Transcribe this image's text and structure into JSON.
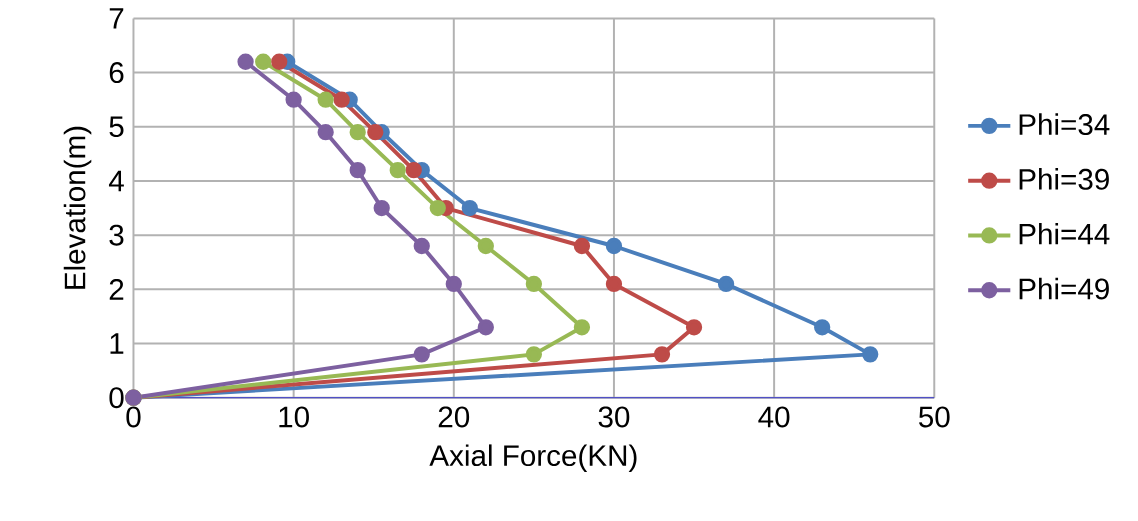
{
  "chart_data": {
    "type": "line",
    "xlabel": "Axial Force(KN)",
    "ylabel": "Elevation(m)",
    "xlim": [
      0,
      50
    ],
    "xticks": [
      0,
      10,
      20,
      30,
      40,
      50
    ],
    "ylim": [
      0,
      7
    ],
    "yticks": [
      0,
      1,
      2,
      3,
      4,
      5,
      6,
      7
    ],
    "grid": true,
    "legend": "right",
    "marker": "circle",
    "line_style": "solid",
    "series": [
      {
        "name": "Phi=34",
        "color": "#4a7ebb",
        "x": [
          9.6,
          13.5,
          15.5,
          18,
          21,
          30,
          37,
          43,
          46,
          0
        ],
        "values": [
          6.2,
          5.5,
          4.9,
          4.2,
          3.5,
          2.8,
          2.1,
          1.3,
          0.8,
          0
        ]
      },
      {
        "name": "Phi=39",
        "color": "#be4b48",
        "x": [
          9.1,
          13,
          15.1,
          17.5,
          19.5,
          28,
          30,
          35,
          33,
          0
        ],
        "values": [
          6.2,
          5.5,
          4.9,
          4.2,
          3.5,
          2.8,
          2.1,
          1.3,
          0.8,
          0
        ]
      },
      {
        "name": "Phi=44",
        "color": "#98b954",
        "x": [
          8.1,
          12,
          14,
          16.5,
          19,
          22,
          25,
          28,
          25,
          0
        ],
        "values": [
          6.2,
          5.5,
          4.9,
          4.2,
          3.5,
          2.8,
          2.1,
          1.3,
          0.8,
          0
        ]
      },
      {
        "name": "Phi=49",
        "color": "#7d60a0",
        "x": [
          7,
          10,
          12,
          14,
          15.5,
          18,
          20,
          22,
          18,
          0
        ],
        "values": [
          6.2,
          5.5,
          4.9,
          4.2,
          3.5,
          2.8,
          2.1,
          1.3,
          0.8,
          0
        ]
      }
    ]
  }
}
